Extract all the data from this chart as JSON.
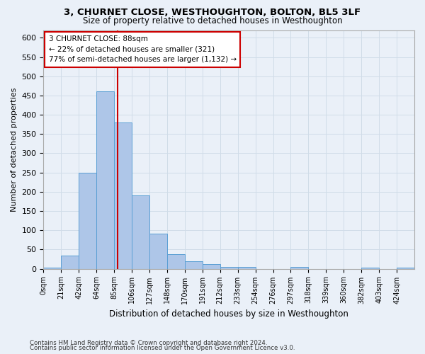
{
  "title": "3, CHURNET CLOSE, WESTHOUGHTON, BOLTON, BL5 3LF",
  "subtitle": "Size of property relative to detached houses in Westhoughton",
  "xlabel": "Distribution of detached houses by size in Westhoughton",
  "ylabel": "Number of detached properties",
  "footer1": "Contains HM Land Registry data © Crown copyright and database right 2024.",
  "footer2": "Contains public sector information licensed under the Open Government Licence v3.0.",
  "bar_labels": [
    "0sqm",
    "21sqm",
    "42sqm",
    "64sqm",
    "85sqm",
    "106sqm",
    "127sqm",
    "148sqm",
    "170sqm",
    "191sqm",
    "212sqm",
    "233sqm",
    "254sqm",
    "276sqm",
    "297sqm",
    "318sqm",
    "339sqm",
    "360sqm",
    "382sqm",
    "403sqm",
    "424sqm"
  ],
  "bar_values": [
    3,
    35,
    250,
    460,
    380,
    190,
    92,
    37,
    20,
    13,
    5,
    5,
    0,
    0,
    5,
    0,
    0,
    0,
    3,
    0,
    3
  ],
  "bar_color": "#aec6e8",
  "bar_edge_color": "#5a9fd4",
  "property_line_x": 88,
  "property_label": "3 CHURNET CLOSE: 88sqm",
  "annotation_line1": "← 22% of detached houses are smaller (321)",
  "annotation_line2": "77% of semi-detached houses are larger (1,132) →",
  "annotation_box_color": "#ffffff",
  "annotation_box_edge": "#cc0000",
  "vline_color": "#cc0000",
  "grid_color": "#d0dce8",
  "bg_color": "#eaf0f8",
  "ylim": [
    0,
    620
  ],
  "bin_width": 21
}
